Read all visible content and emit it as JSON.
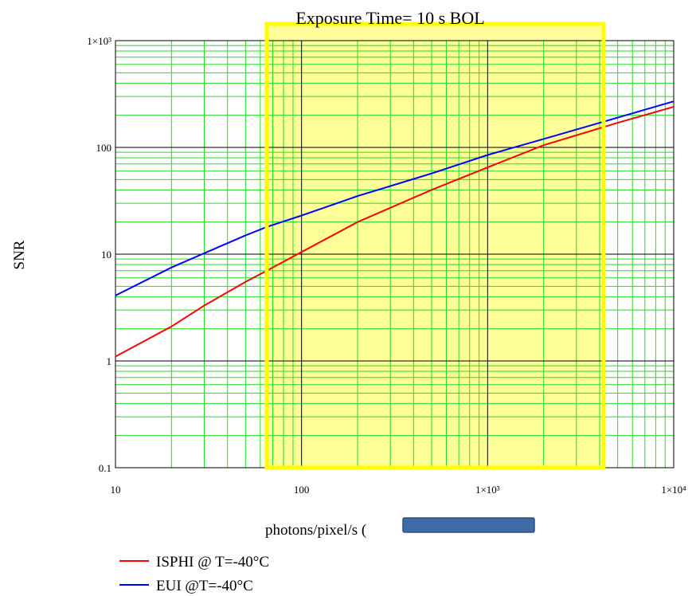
{
  "chart_data": {
    "type": "line",
    "title": "Exposure Time= 10 s  BOL",
    "xlabel": "photons/pixel/s (",
    "ylabel": "SNR",
    "x_scale": "log",
    "y_scale": "log",
    "xlim": [
      10,
      10000
    ],
    "ylim": [
      0.1,
      1000
    ],
    "x_ticks": [
      {
        "value": 10,
        "label": "10"
      },
      {
        "value": 100,
        "label": "100"
      },
      {
        "value": 1000,
        "label": "1×10³"
      },
      {
        "value": 10000,
        "label": "1×10⁴"
      }
    ],
    "y_ticks": [
      {
        "value": 0.1,
        "label": "0.1"
      },
      {
        "value": 1,
        "label": "1"
      },
      {
        "value": 10,
        "label": "10"
      },
      {
        "value": 100,
        "label": "100"
      },
      {
        "value": 1000,
        "label": "1×10³"
      }
    ],
    "grid": true,
    "legend_position": "bottom-left",
    "highlight_region": {
      "x_range": [
        65,
        4200
      ],
      "fill": "#ffff99",
      "border": "#ffff00"
    },
    "redaction_bar_color": "#3e6aa6",
    "series": [
      {
        "name": "ISPHI @ T=-40°C",
        "color": "#ff0000",
        "x": [
          10,
          20,
          30,
          50,
          65,
          100,
          200,
          500,
          1000,
          2000,
          5000,
          10000
        ],
        "y": [
          1.1,
          2.1,
          3.3,
          5.5,
          7.0,
          10.5,
          20,
          40,
          65,
          105,
          170,
          240
        ]
      },
      {
        "name": "EUI @T=-40°C",
        "color": "#0000ff",
        "x": [
          10,
          20,
          30,
          50,
          65,
          100,
          200,
          500,
          1000,
          2000,
          5000,
          10000
        ],
        "y": [
          4.1,
          7.5,
          10.2,
          15,
          18,
          23,
          35,
          57,
          85,
          120,
          190,
          270
        ]
      }
    ]
  }
}
